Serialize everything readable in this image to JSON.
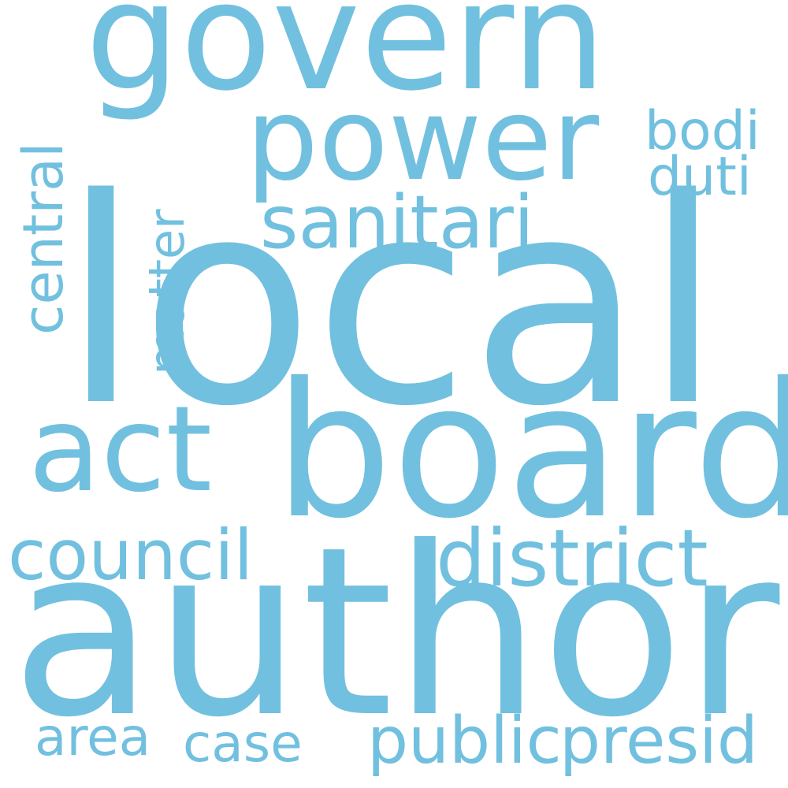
{
  "colors": {
    "background": "#ffffff",
    "word": "#72c0df"
  },
  "words": {
    "local": "local",
    "author": "author",
    "board": "board",
    "govern": "govern",
    "power": "power",
    "act": "act",
    "sanitari": "sanitari",
    "district": "district",
    "council": "council",
    "central": "central",
    "matter": "matter",
    "bodi": "bodi",
    "duti": "duti",
    "public": "public",
    "presid": "presid",
    "area": "area",
    "case": "case"
  }
}
